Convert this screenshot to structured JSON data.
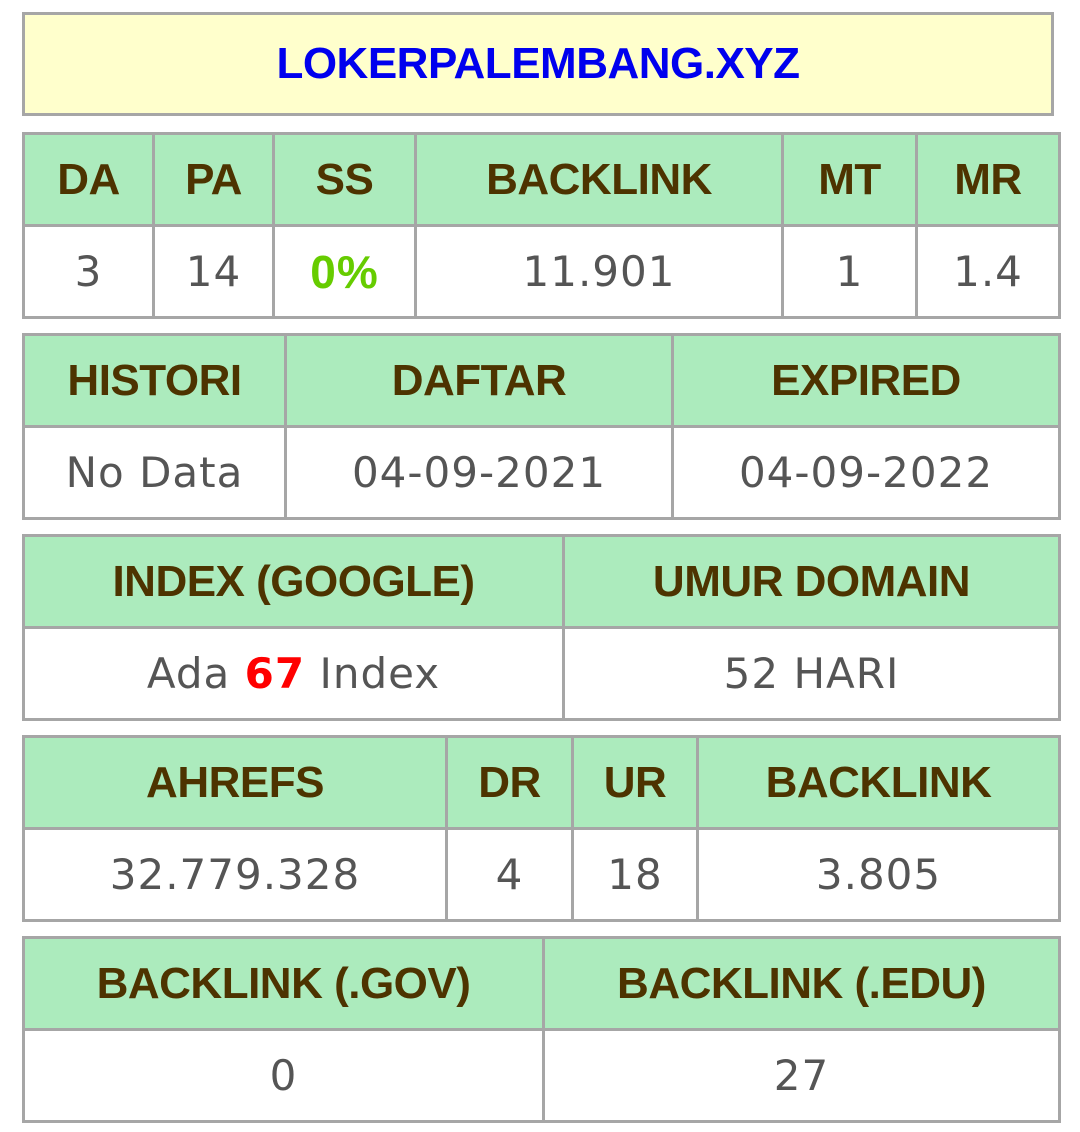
{
  "domain": "LOKERPALEMBANG.XYZ",
  "moz": {
    "headers": [
      "DA",
      "PA",
      "SS",
      "BACKLINK",
      "MT",
      "MR"
    ],
    "values": {
      "da": "3",
      "pa": "14",
      "ss": "0%",
      "backlink": "11.901",
      "mt": "1",
      "mr": "1.4"
    }
  },
  "registration": {
    "headers": [
      "HISTORI",
      "DAFTAR",
      "EXPIRED"
    ],
    "values": {
      "histori": "No Data",
      "daftar": "04-09-2021",
      "expired": "04-09-2022"
    }
  },
  "index": {
    "headers": [
      "INDEX (GOOGLE)",
      "UMUR DOMAIN"
    ],
    "index_prefix": "Ada",
    "index_count": "67",
    "index_suffix": "Index",
    "umur": "52 HARI"
  },
  "ahrefs": {
    "headers": [
      "AHREFS",
      "DR",
      "UR",
      "BACKLINK"
    ],
    "values": {
      "rank": "32.779.328",
      "dr": "4",
      "ur": "18",
      "backlink": "3.805"
    }
  },
  "special_backlinks": {
    "headers": [
      "BACKLINK (.GOV)",
      "BACKLINK (.EDU)"
    ],
    "values": {
      "gov": "0",
      "edu": "27"
    }
  },
  "colors": {
    "title_bg": "#ffffcc",
    "title_text": "#0000ee",
    "header_bg": "#acebbd",
    "header_text": "#4d3300",
    "value_text": "#555555",
    "ss_value": "#66cc00",
    "index_count": "#ff0000",
    "border": "#a6a6a6"
  }
}
